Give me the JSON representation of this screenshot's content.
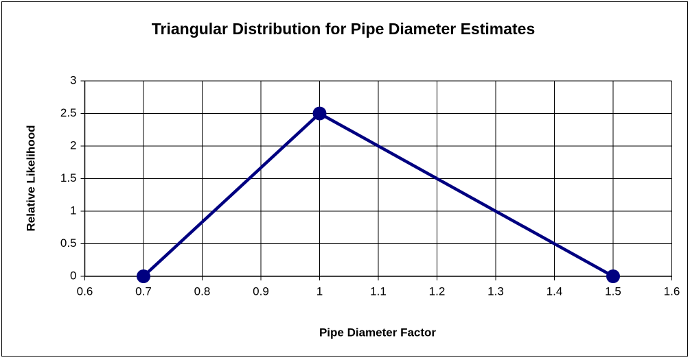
{
  "chart_data": {
    "type": "line",
    "title": "Triangular Distribution for Pipe Diameter Estimates",
    "x_label": "Pipe Diameter Factor",
    "y_label": "Relative Likelihood",
    "x": [
      0.7,
      1,
      1.5
    ],
    "values": [
      0,
      2.5,
      0
    ],
    "color": "#000080",
    "xlim": [
      0.6,
      1.6
    ],
    "xticks": [
      0.6,
      0.7,
      0.8,
      0.9,
      1,
      1.1,
      1.2,
      1.3,
      1.4,
      1.5,
      1.6
    ],
    "ylim": [
      0,
      3
    ],
    "yticks": [
      0,
      0.5,
      1,
      1.5,
      2,
      2.5,
      3
    ],
    "grid": true
  }
}
